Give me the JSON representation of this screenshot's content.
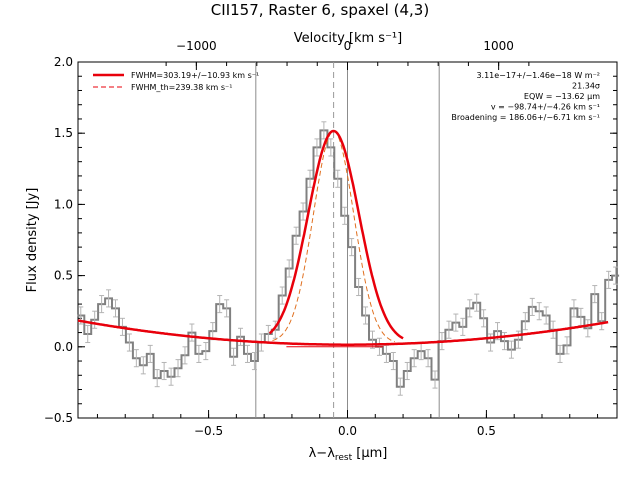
{
  "chart_data": {
    "type": "line",
    "title": "CII157, Raster 6, spaxel (4,3)",
    "xlabel_base": "λ−λ",
    "xlabel_sub": "rest",
    "xlabel_unit": " [μm]",
    "ylabel": "Flux density [Jy]",
    "top_axis_label": "Velocity [km s⁻¹]",
    "xlim": [
      -0.97,
      0.97
    ],
    "ylim": [
      -0.5,
      2.0
    ],
    "x_ticks": [
      -0.5,
      0.0,
      0.5
    ],
    "x_tick_labels": [
      "−0.5",
      "0.0",
      "0.5"
    ],
    "y_ticks": [
      -0.5,
      0.0,
      0.5,
      1.0,
      1.5,
      2.0
    ],
    "y_tick_labels": [
      "−0.5",
      "0.0",
      "0.5",
      "1.0",
      "1.5",
      "2.0"
    ],
    "top_ticks_um": [
      -0.544,
      0.0,
      0.544
    ],
    "top_tick_labels": [
      "−1000",
      "0",
      "1000"
    ],
    "vlines_solid": [
      -0.33,
      0.0,
      0.33
    ],
    "vline_dashed": -0.05,
    "legend": [
      {
        "label": "FWHM=303.19+/−10.93 km s⁻¹",
        "style": "solid",
        "color": "#e8000b"
      },
      {
        "label": "FWHM_th=239.38 km s⁻¹",
        "style": "dashed",
        "color": "#e8000b"
      }
    ],
    "annotations": [
      "3.11e−17+/−1.46e−18 W m⁻²",
      "21.34σ",
      "EQW = −13.62 μm",
      "v = −98.74+/−4.26 km s⁻¹",
      "Broadening = 186.06+/−6.71 km s⁻¹"
    ],
    "series": [
      {
        "name": "data",
        "style": "step",
        "color": "#808080",
        "x": [
          -0.96,
          -0.935,
          -0.91,
          -0.885,
          -0.86,
          -0.835,
          -0.81,
          -0.785,
          -0.76,
          -0.735,
          -0.71,
          -0.685,
          -0.66,
          -0.635,
          -0.61,
          -0.585,
          -0.56,
          -0.535,
          -0.51,
          -0.485,
          -0.46,
          -0.435,
          -0.41,
          -0.385,
          -0.36,
          -0.335,
          -0.31,
          -0.285,
          -0.26,
          -0.235,
          -0.21,
          -0.185,
          -0.16,
          -0.135,
          -0.11,
          -0.085,
          -0.06,
          -0.035,
          -0.01,
          0.015,
          0.04,
          0.065,
          0.09,
          0.115,
          0.14,
          0.165,
          0.19,
          0.215,
          0.24,
          0.265,
          0.29,
          0.315,
          0.34,
          0.365,
          0.39,
          0.415,
          0.44,
          0.465,
          0.49,
          0.515,
          0.54,
          0.565,
          0.59,
          0.615,
          0.64,
          0.665,
          0.69,
          0.715,
          0.74,
          0.765,
          0.79,
          0.815,
          0.84,
          0.865,
          0.89,
          0.915,
          0.94,
          0.965
        ],
        "values": [
          0.22,
          0.09,
          0.19,
          0.3,
          0.34,
          0.27,
          0.14,
          0.03,
          -0.08,
          -0.13,
          -0.05,
          -0.22,
          -0.17,
          -0.21,
          -0.15,
          -0.06,
          0.1,
          -0.05,
          -0.03,
          0.11,
          0.3,
          0.27,
          -0.07,
          0.07,
          -0.05,
          -0.1,
          0.03,
          0.09,
          0.12,
          0.36,
          0.55,
          0.78,
          0.95,
          1.18,
          1.4,
          1.52,
          1.4,
          1.18,
          0.92,
          0.7,
          0.42,
          0.22,
          0.05,
          0.0,
          -0.05,
          -0.1,
          -0.28,
          -0.17,
          -0.08,
          -0.03,
          -0.08,
          -0.23,
          0.04,
          0.12,
          0.17,
          0.14,
          0.27,
          0.31,
          0.2,
          0.03,
          0.11,
          0.04,
          -0.02,
          0.05,
          0.18,
          0.28,
          0.25,
          0.22,
          0.12,
          -0.05,
          0.01,
          0.27,
          0.21,
          0.13,
          0.37,
          0.18,
          0.47,
          0.5
        ]
      },
      {
        "name": "fit",
        "style": "solid",
        "color": "#e8000b",
        "peak": 1.5,
        "center": -0.05,
        "sigma": 0.092
      },
      {
        "name": "gaussian_th",
        "style": "dashed",
        "color": "#e07020",
        "peak": 1.5,
        "center": -0.05,
        "sigma": 0.073
      }
    ]
  }
}
